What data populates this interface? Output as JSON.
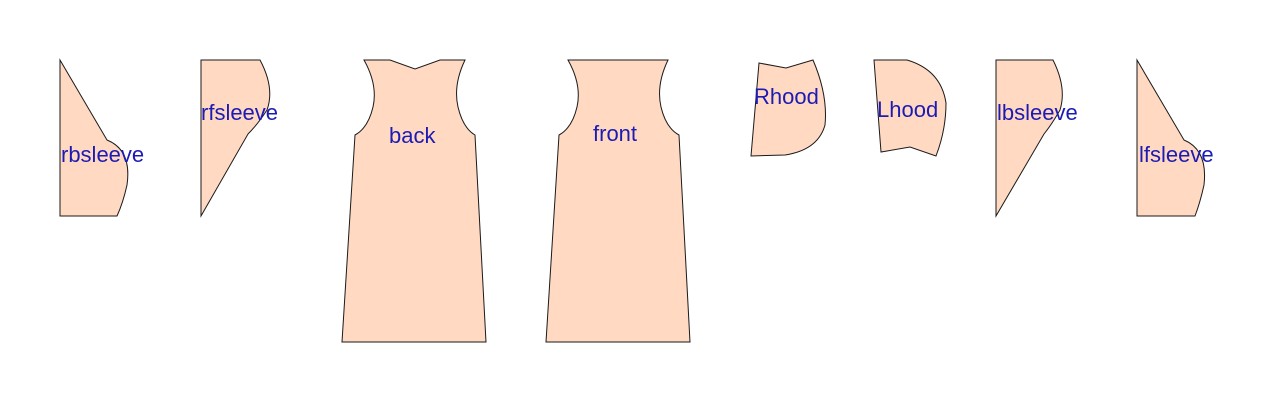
{
  "style": {
    "piece_fill": "#ffd9c2",
    "piece_stroke": "#1a1a1a",
    "label_color": "#1c1cb4"
  },
  "pieces": [
    {
      "label": "rbsleeve"
    },
    {
      "label": "rfsleeve"
    },
    {
      "label": "back"
    },
    {
      "label": "front"
    },
    {
      "label": "Rhood"
    },
    {
      "label": "Lhood"
    },
    {
      "label": "lbsleeve"
    },
    {
      "label": "lfsleeve"
    }
  ]
}
